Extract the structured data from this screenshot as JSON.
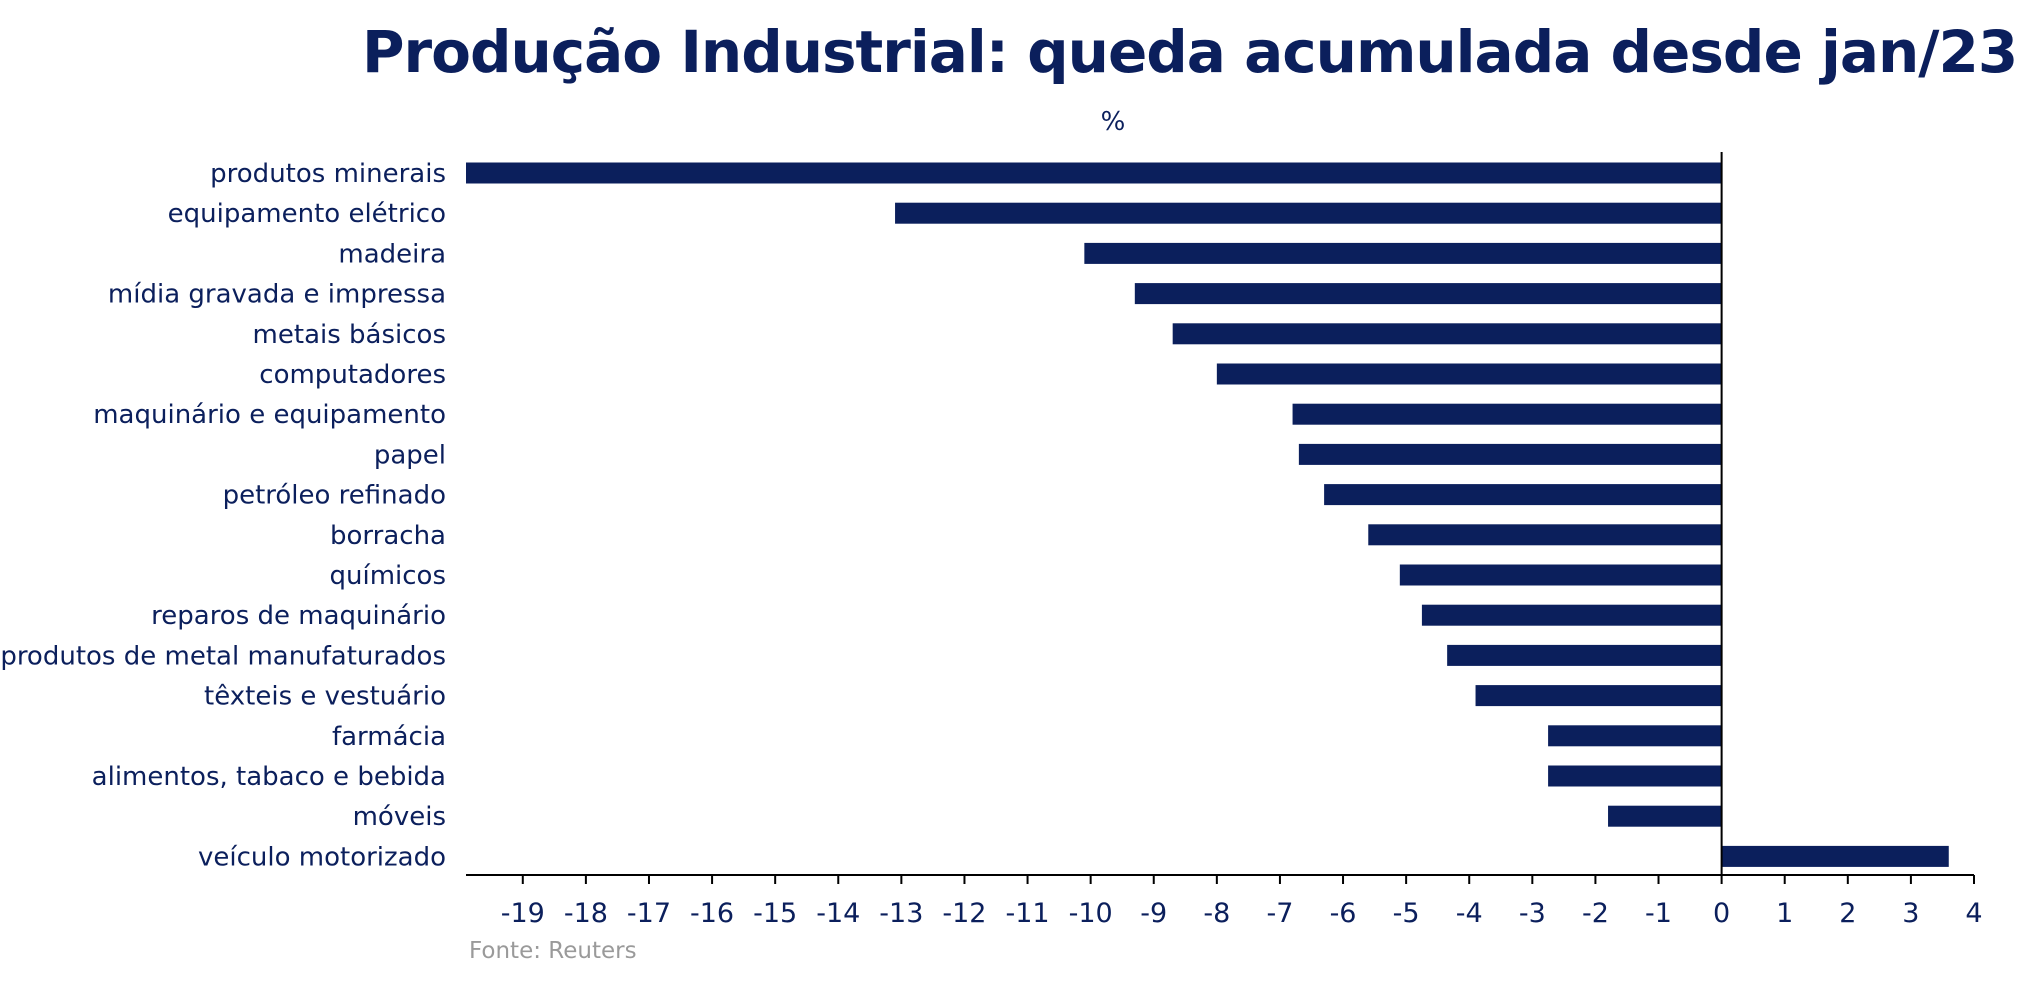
{
  "chart_data": {
    "type": "bar",
    "orientation": "horizontal",
    "title": "Produção Industrial: queda acumulada desde jan/23",
    "unit": "%",
    "source": "Fonte: Reuters",
    "categories": [
      "produtos minerais",
      "equipamento elétrico",
      "madeira",
      "mídia gravada e impressa",
      "metais básicos",
      "computadores",
      "maquinário e equipamento",
      "papel",
      "petróleo refinado",
      "borracha",
      "químicos",
      "reparos de maquinário",
      "produtos de metal manufaturados",
      "têxteis e vestuário",
      "farmácia",
      "alimentos, tabaco e bebida",
      "móveis",
      "veículo motorizado"
    ],
    "values": [
      -19.9,
      -13.1,
      -10.1,
      -9.3,
      -8.7,
      -8.0,
      -6.8,
      -6.7,
      -6.3,
      -5.6,
      -5.1,
      -4.75,
      -4.35,
      -3.9,
      -2.75,
      -2.75,
      -1.8,
      3.6
    ],
    "xlim": [
      -19.9,
      4
    ],
    "xticks": [
      -19,
      -18,
      -17,
      -16,
      -15,
      -14,
      -13,
      -12,
      -11,
      -10,
      -9,
      -8,
      -7,
      -6,
      -5,
      -4,
      -3,
      -2,
      -1,
      0,
      1,
      2,
      3,
      4
    ],
    "grid": false,
    "legend": "none",
    "bar_color": "#0b1f5c"
  }
}
